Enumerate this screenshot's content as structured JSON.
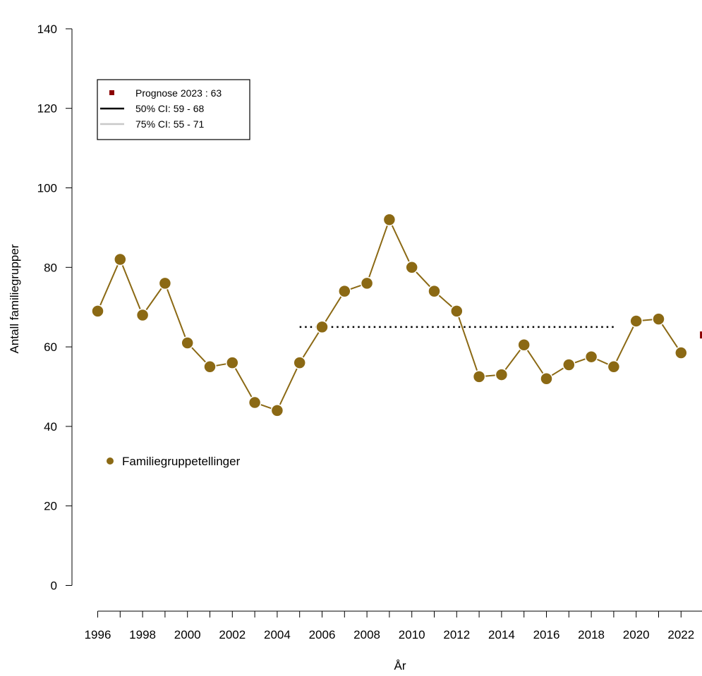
{
  "chart_data": {
    "type": "line",
    "xlabel": "År",
    "ylabel": "Antall familiegrupper",
    "xlim": [
      1995.2,
      2023.1
    ],
    "ylim": [
      0,
      140
    ],
    "x_ticks": [
      1996,
      1997,
      1998,
      1999,
      2000,
      2001,
      2002,
      2003,
      2004,
      2005,
      2006,
      2007,
      2008,
      2009,
      2010,
      2011,
      2012,
      2013,
      2014,
      2015,
      2016,
      2017,
      2018,
      2019,
      2020,
      2021,
      2022,
      2023
    ],
    "x_tick_labels": [
      "1996",
      "1998",
      "2000",
      "2002",
      "2004",
      "2006",
      "2008",
      "2010",
      "2012",
      "2014",
      "2016",
      "2018",
      "2020",
      "2022"
    ],
    "y_ticks": [
      0,
      20,
      40,
      60,
      80,
      100,
      120,
      140
    ],
    "y_tick_labels": [
      "0",
      "20",
      "40",
      "60",
      "80",
      "100",
      "120",
      "140"
    ],
    "grid": false,
    "series": [
      {
        "name": "Familiegruppetellinger",
        "color": "#8b6914",
        "x": [
          1996,
          1997,
          1998,
          1999,
          2000,
          2001,
          2002,
          2003,
          2004,
          2005,
          2006,
          2007,
          2008,
          2009,
          2010,
          2011,
          2012,
          2013,
          2014,
          2015,
          2016,
          2017,
          2018,
          2019,
          2020,
          2021,
          2022
        ],
        "y": [
          69,
          82,
          68,
          76,
          61,
          55,
          56,
          46,
          44,
          56,
          65,
          74,
          76,
          92,
          80,
          74,
          69,
          52.5,
          53,
          60.5,
          52,
          55.5,
          57.5,
          55,
          66.5,
          67,
          58.5
        ]
      }
    ],
    "reference_line": {
      "style": "dotted",
      "color": "#000000",
      "x_start": 2005,
      "x_end": 2019,
      "y": 65
    },
    "forecast": {
      "x": 2023,
      "y": 63,
      "color": "#8b0000",
      "ci50": [
        59,
        68
      ],
      "ci75": [
        55,
        71
      ],
      "ci50_color": "#000000",
      "ci75_color": "#c8c8c8"
    },
    "legend": {
      "placement": "top-left",
      "entries": [
        "Prognose 2023 : 63",
        "50% CI:  59 - 68",
        "75% CI:  55 - 71"
      ]
    },
    "series_legend": {
      "placement": "middle-left",
      "label": "Familiegruppetellinger"
    }
  }
}
